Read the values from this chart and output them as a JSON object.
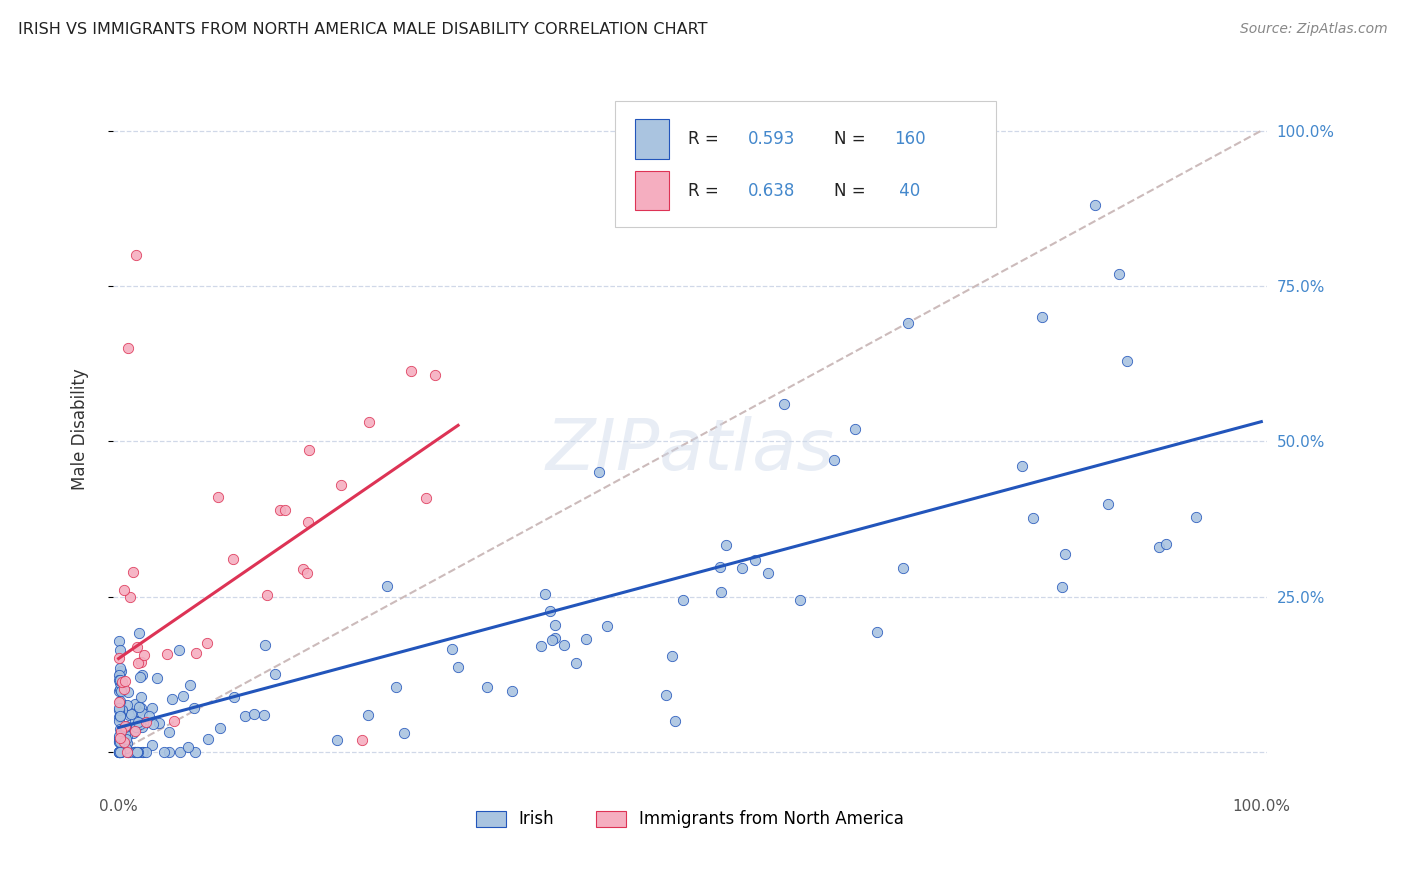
{
  "title": "IRISH VS IMMIGRANTS FROM NORTH AMERICA MALE DISABILITY CORRELATION CHART",
  "source": "Source: ZipAtlas.com",
  "ylabel": "Male Disability",
  "irish_color": "#aac4e0",
  "irish_line_color": "#2255bb",
  "na_color": "#f5aec0",
  "na_line_color": "#dd3355",
  "dash_color": "#ccbbbb",
  "grid_color": "#d0d8e8",
  "watermark": "ZIPatlas",
  "r_irish": "0.593",
  "n_irish": "160",
  "r_na": "0.638",
  "n_na": "40",
  "legend_label_irish": "Irish",
  "legend_label_na": "Immigrants from North America",
  "text_blue": "#4488cc",
  "irish_seed": 77,
  "na_seed": 33
}
